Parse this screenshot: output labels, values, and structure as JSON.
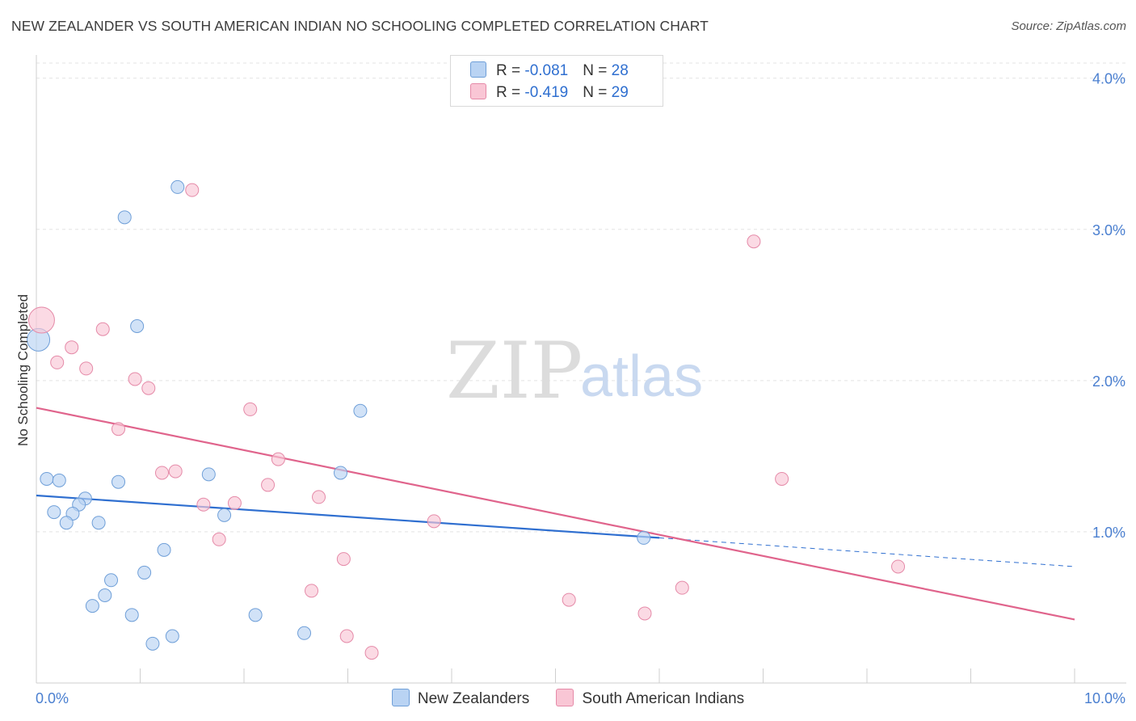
{
  "title": "NEW ZEALANDER VS SOUTH AMERICAN INDIAN NO SCHOOLING COMPLETED CORRELATION CHART",
  "source": "Source: ZipAtlas.com",
  "watermark": {
    "zip": "ZIP",
    "atlas": "atlas"
  },
  "legend": {
    "rows": [
      {
        "r_label": "R = ",
        "r_value": "-0.081",
        "n_label": "N = ",
        "n_value": "28"
      },
      {
        "r_label": "R = ",
        "r_value": "-0.419",
        "n_label": "N = ",
        "n_value": "29"
      }
    ]
  },
  "bottom_legend": {
    "series1": "New Zealanders",
    "series2": "South American Indians"
  },
  "colors": {
    "blue_fill": "#b9d3f3",
    "blue_stroke": "#6f9fd8",
    "blue_line": "#2f6fd0",
    "pink_fill": "#f9c6d5",
    "pink_stroke": "#e58aa8",
    "pink_line": "#e0648c",
    "grid": "#e3e3e3",
    "tick_text": "#4a7fd0"
  },
  "chart_data": {
    "type": "scatter",
    "title": "NEW ZEALANDER VS SOUTH AMERICAN INDIAN NO SCHOOLING COMPLETED CORRELATION CHART",
    "xlabel": "",
    "ylabel": "No Schooling Completed",
    "xlim": [
      0,
      10
    ],
    "ylim": [
      0,
      4.1
    ],
    "x_tick_labels": [
      "0.0%",
      "10.0%"
    ],
    "y_ticks": [
      1,
      2,
      3,
      4
    ],
    "y_tick_labels": [
      "1.0%",
      "2.0%",
      "3.0%",
      "4.0%"
    ],
    "series": [
      {
        "name": "New Zealanders",
        "color": "blue",
        "points": [
          [
            0.02,
            2.27,
            14
          ],
          [
            1.36,
            3.28,
            8
          ],
          [
            0.85,
            3.08,
            8
          ],
          [
            0.97,
            2.36,
            8
          ],
          [
            3.12,
            1.8,
            8
          ],
          [
            0.1,
            1.35,
            8
          ],
          [
            0.22,
            1.34,
            8
          ],
          [
            0.79,
            1.33,
            8
          ],
          [
            1.66,
            1.38,
            8
          ],
          [
            2.93,
            1.39,
            8
          ],
          [
            0.47,
            1.22,
            8
          ],
          [
            0.41,
            1.18,
            8
          ],
          [
            0.17,
            1.13,
            8
          ],
          [
            0.35,
            1.12,
            8
          ],
          [
            0.29,
            1.06,
            8
          ],
          [
            0.6,
            1.06,
            8
          ],
          [
            1.81,
            1.11,
            8
          ],
          [
            5.85,
            0.96,
            8
          ],
          [
            1.23,
            0.88,
            8
          ],
          [
            1.04,
            0.73,
            8
          ],
          [
            0.72,
            0.68,
            8
          ],
          [
            0.66,
            0.58,
            8
          ],
          [
            0.54,
            0.51,
            8
          ],
          [
            0.92,
            0.45,
            8
          ],
          [
            2.11,
            0.45,
            8
          ],
          [
            2.58,
            0.33,
            8
          ],
          [
            1.31,
            0.31,
            8
          ],
          [
            1.12,
            0.26,
            8
          ]
        ]
      },
      {
        "name": "South American Indians",
        "color": "pink",
        "points": [
          [
            0.05,
            2.4,
            16
          ],
          [
            1.5,
            3.26,
            8
          ],
          [
            6.91,
            2.92,
            8
          ],
          [
            0.64,
            2.34,
            8
          ],
          [
            0.34,
            2.22,
            8
          ],
          [
            0.2,
            2.12,
            8
          ],
          [
            0.48,
            2.08,
            8
          ],
          [
            0.95,
            2.01,
            8
          ],
          [
            1.08,
            1.95,
            8
          ],
          [
            2.06,
            1.81,
            8
          ],
          [
            0.79,
            1.68,
            8
          ],
          [
            2.33,
            1.48,
            8
          ],
          [
            1.34,
            1.4,
            8
          ],
          [
            1.21,
            1.39,
            8
          ],
          [
            7.18,
            1.35,
            8
          ],
          [
            2.23,
            1.31,
            8
          ],
          [
            2.72,
            1.23,
            8
          ],
          [
            1.91,
            1.19,
            8
          ],
          [
            1.61,
            1.18,
            8
          ],
          [
            3.83,
            1.07,
            8
          ],
          [
            1.76,
            0.95,
            8
          ],
          [
            2.96,
            0.82,
            8
          ],
          [
            8.3,
            0.77,
            8
          ],
          [
            6.22,
            0.63,
            8
          ],
          [
            2.65,
            0.61,
            8
          ],
          [
            5.13,
            0.55,
            8
          ],
          [
            5.86,
            0.46,
            8
          ],
          [
            2.99,
            0.31,
            8
          ],
          [
            3.23,
            0.2,
            8
          ]
        ]
      }
    ],
    "trend_lines": [
      {
        "series": "New Zealanders",
        "x": [
          0,
          6.0
        ],
        "y": [
          1.24,
          0.96
        ],
        "dashed_x": [
          6.0,
          10.0
        ],
        "dashed_y": [
          0.96,
          0.77
        ]
      },
      {
        "series": "South American Indians",
        "x": [
          0,
          10.0
        ],
        "y": [
          1.82,
          0.42
        ]
      }
    ]
  }
}
